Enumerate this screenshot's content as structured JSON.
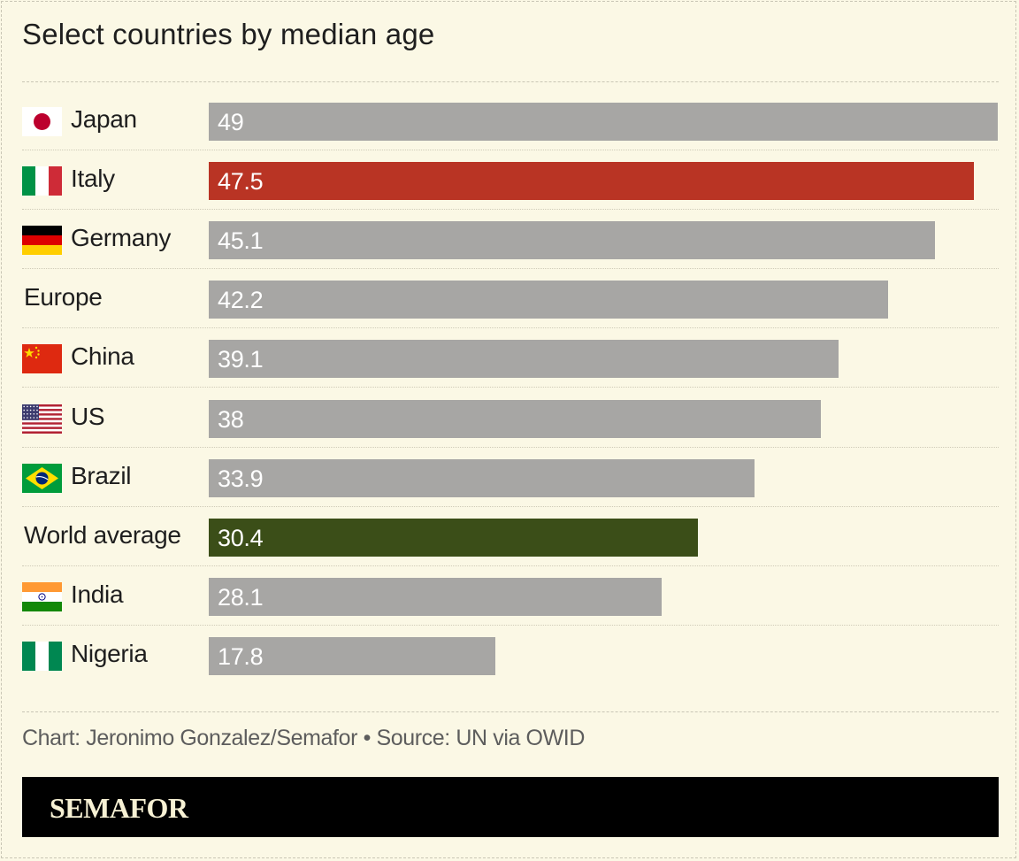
{
  "title": "Select countries by median age",
  "chart_data": {
    "type": "bar",
    "orientation": "horizontal",
    "title": "Select countries by median age",
    "categories": [
      "Japan",
      "Italy",
      "Germany",
      "Europe",
      "China",
      "US",
      "Brazil",
      "World average",
      "India",
      "Nigeria"
    ],
    "values": [
      49,
      47.5,
      45.1,
      42.2,
      39.1,
      38,
      33.9,
      30.4,
      28.1,
      17.8
    ],
    "value_labels": [
      "49",
      "47.5",
      "45.1",
      "42.2",
      "39.1",
      "38",
      "33.9",
      "30.4",
      "28.1",
      "17.8"
    ],
    "flags": [
      "japan",
      "italy",
      "germany",
      "",
      "china",
      "us",
      "brazil",
      "",
      "india",
      "nigeria"
    ],
    "colors": [
      "#A7A6A4",
      "#B93424",
      "#A7A6A4",
      "#A7A6A4",
      "#A7A6A4",
      "#A7A6A4",
      "#A7A6A4",
      "#3B4E18",
      "#A7A6A4",
      "#A7A6A4"
    ],
    "xlim": [
      0,
      49
    ],
    "xlabel": "",
    "ylabel": "",
    "grid": false
  },
  "footer": {
    "credit": "Chart: Jeronimo Gonzalez/Semafor • Source: UN via OWID",
    "brand": "SEMAFOR"
  }
}
